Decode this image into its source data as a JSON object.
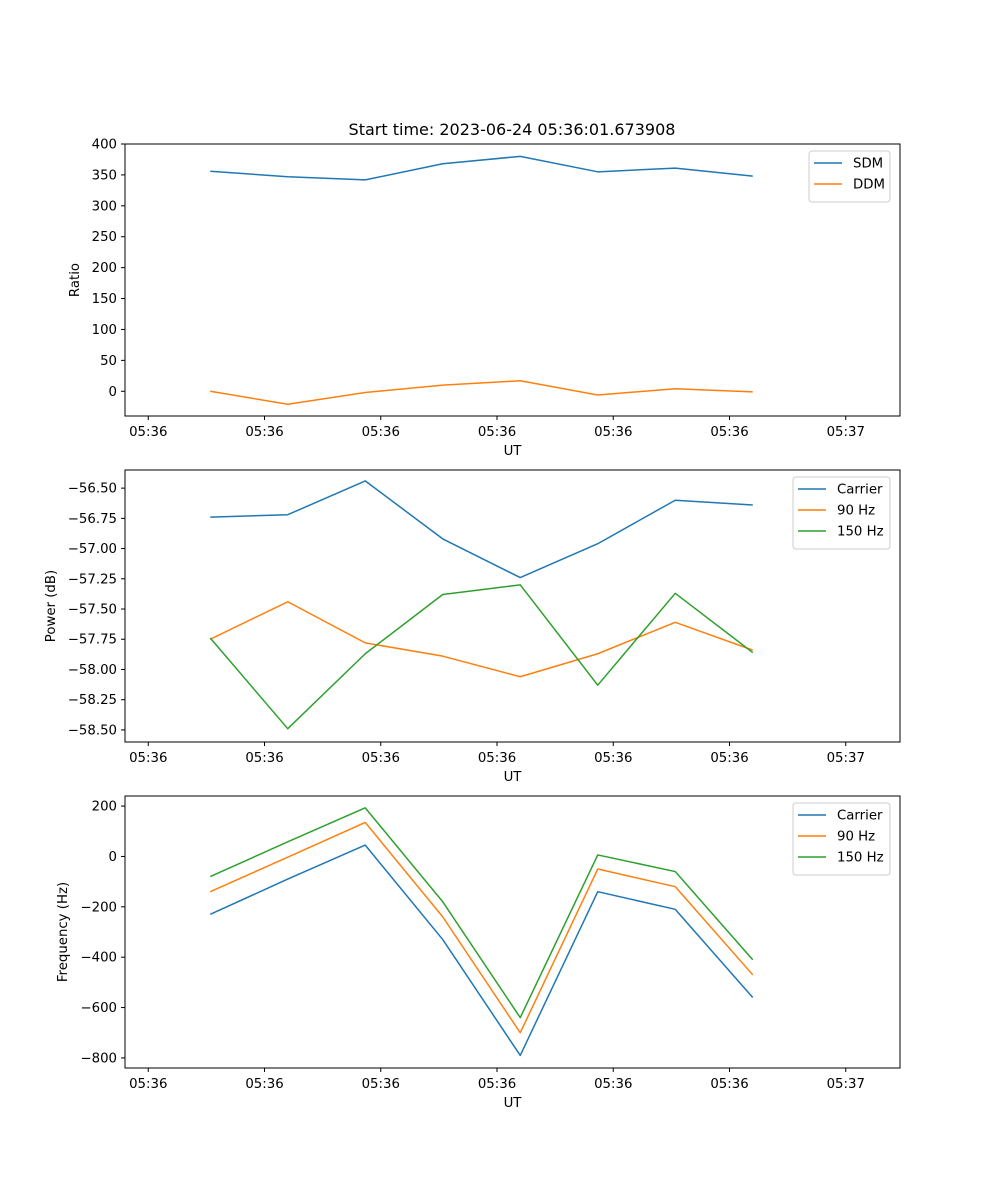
{
  "figure": {
    "title": "Start time: 2023-06-24 05:36:01.673908"
  },
  "chart_data": [
    {
      "type": "line",
      "title": "Start time: 2023-06-24 05:36:01.673908",
      "xlabel": "UT",
      "ylabel": "Ratio",
      "x": [
        1.1,
        2.1,
        3.1,
        4.1,
        5.1,
        6.1,
        7.1,
        8.1
      ],
      "xlim": [
        0,
        10
      ],
      "xticks": [
        0.3,
        1.8,
        3.3,
        4.8,
        6.3,
        7.8,
        9.3
      ],
      "xtick_labels": [
        "05:36",
        "05:36",
        "05:36",
        "05:36",
        "05:36",
        "05:36",
        "05:37"
      ],
      "ylim": [
        -40,
        400
      ],
      "yticks": [
        0,
        50,
        100,
        150,
        200,
        250,
        300,
        350,
        400
      ],
      "ytick_labels": [
        "0",
        "50",
        "100",
        "150",
        "200",
        "250",
        "300",
        "350",
        "400"
      ],
      "grid": false,
      "legend": "upper-right",
      "series": [
        {
          "name": "SDM",
          "color": "#1f77b4",
          "values": [
            356,
            347,
            342,
            368,
            380,
            355,
            361,
            348
          ]
        },
        {
          "name": "DDM",
          "color": "#ff7f0e",
          "values": [
            0,
            -21,
            -2,
            10,
            17,
            -6,
            4,
            -1
          ]
        }
      ]
    },
    {
      "type": "line",
      "xlabel": "UT",
      "ylabel": "Power (dB)",
      "x": [
        1.1,
        2.1,
        3.1,
        4.1,
        5.1,
        6.1,
        7.1,
        8.1
      ],
      "xlim": [
        0,
        10
      ],
      "xticks": [
        0.3,
        1.8,
        3.3,
        4.8,
        6.3,
        7.8,
        9.3
      ],
      "xtick_labels": [
        "05:36",
        "05:36",
        "05:36",
        "05:36",
        "05:36",
        "05:36",
        "05:37"
      ],
      "ylim": [
        -58.6,
        -56.35
      ],
      "yticks": [
        -58.5,
        -58.25,
        -58.0,
        -57.75,
        -57.5,
        -57.25,
        -57.0,
        -56.75,
        -56.5
      ],
      "ytick_labels": [
        "−58.50",
        "−58.25",
        "−58.00",
        "−57.75",
        "−57.50",
        "−57.25",
        "−57.00",
        "−56.75",
        "−56.50"
      ],
      "grid": false,
      "legend": "upper-right",
      "series": [
        {
          "name": "Carrier",
          "color": "#1f77b4",
          "values": [
            -56.74,
            -56.72,
            -56.44,
            -56.92,
            -57.24,
            -56.96,
            -56.6,
            -56.64
          ]
        },
        {
          "name": "90 Hz",
          "color": "#ff7f0e",
          "values": [
            -57.75,
            -57.44,
            -57.78,
            -57.89,
            -58.06,
            -57.87,
            -57.61,
            -57.84
          ]
        },
        {
          "name": "150 Hz",
          "color": "#2ca02c",
          "values": [
            -57.74,
            -58.49,
            -57.87,
            -57.38,
            -57.3,
            -58.13,
            -57.37,
            -57.86
          ]
        }
      ]
    },
    {
      "type": "line",
      "xlabel": "UT",
      "ylabel": "Frequency (Hz)",
      "x": [
        1.1,
        2.1,
        3.1,
        4.1,
        5.1,
        6.1,
        7.1,
        8.1
      ],
      "xlim": [
        0,
        10
      ],
      "xticks": [
        0.3,
        1.8,
        3.3,
        4.8,
        6.3,
        7.8,
        9.3
      ],
      "xtick_labels": [
        "05:36",
        "05:36",
        "05:36",
        "05:36",
        "05:36",
        "05:36",
        "05:37"
      ],
      "ylim": [
        -840,
        240
      ],
      "yticks": [
        -800,
        -600,
        -400,
        -200,
        0,
        200
      ],
      "ytick_labels": [
        "−800",
        "−600",
        "−400",
        "−200",
        "0",
        "200"
      ],
      "grid": false,
      "legend": "upper-right",
      "series": [
        {
          "name": "Carrier",
          "color": "#1f77b4",
          "values": [
            -230,
            -90,
            45,
            -330,
            -790,
            -140,
            -210,
            -560
          ]
        },
        {
          "name": "90 Hz",
          "color": "#ff7f0e",
          "values": [
            -140,
            -3,
            135,
            -240,
            -700,
            -50,
            -120,
            -470
          ]
        },
        {
          "name": "150 Hz",
          "color": "#2ca02c",
          "values": [
            -80,
            58,
            193,
            -180,
            -640,
            6,
            -60,
            -410
          ]
        }
      ]
    }
  ]
}
